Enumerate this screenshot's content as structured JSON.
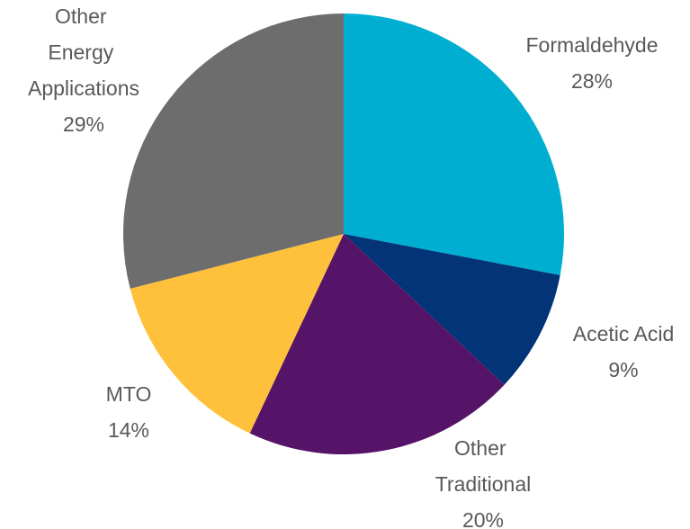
{
  "chart_data": {
    "type": "pie",
    "categories": [
      "Formaldehyde",
      "Acetic Acid",
      "Other Traditional",
      "MTO",
      "Other Energy Applications"
    ],
    "values": [
      28,
      9,
      20,
      14,
      29
    ],
    "value_labels": [
      "28%",
      "9%",
      "20%",
      "14%",
      "29%"
    ],
    "colors": [
      "#00aed1",
      "#033478",
      "#561468",
      "#ffc13b",
      "#6d6d6d"
    ]
  }
}
